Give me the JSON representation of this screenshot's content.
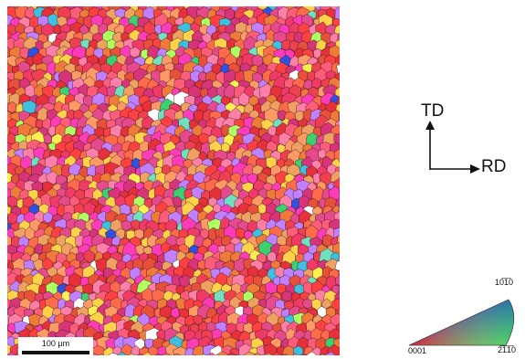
{
  "scale_bar": {
    "label": "100 µm"
  },
  "sample_axes": {
    "vertical": "TD",
    "horizontal": "RD"
  },
  "ipf_key": {
    "top": "10̅1̅0",
    "left": "0001",
    "right": "2̅1̅1̅0"
  },
  "colors": {
    "grain_palette": [
      "#e8303a",
      "#f04050",
      "#ff6a4a",
      "#f07a3a",
      "#ff5c7a",
      "#e64a8c",
      "#ff3cb8",
      "#d9347a",
      "#ff9966",
      "#f0a060",
      "#ff4040",
      "#e8503a",
      "#f23a66",
      "#ff7fa8",
      "#ffd24a",
      "#c080ff"
    ],
    "rare_grain_palette": [
      "#ffffff",
      "#3cd070",
      "#40c0e0",
      "#3050e0",
      "#b0ff60",
      "#ffee50",
      "#70e0c0"
    ],
    "grain_boundary": "#1a1a1a",
    "background": "#ffffff"
  }
}
